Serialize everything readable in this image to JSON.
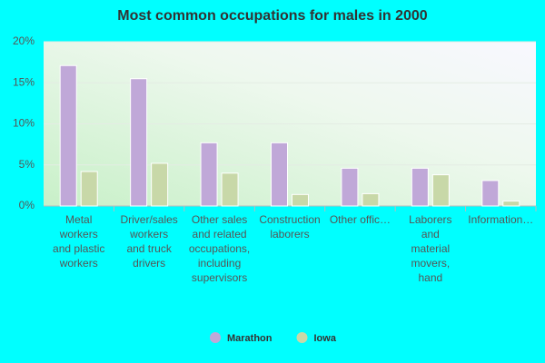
{
  "chart_data": {
    "type": "bar",
    "title": "Most common occupations for males in 2000",
    "categories": [
      "Metal\nworkers\nand plastic\nworkers",
      "Driver/sales\nworkers\nand truck\ndrivers",
      "Other sales\nand related\noccupations,\nincluding\nsupervisors",
      "Construction\nlaborers",
      "Other offic…",
      "Laborers\nand\nmaterial\nmovers,\nhand",
      "Information…"
    ],
    "series": [
      {
        "name": "Marathon",
        "color": "#c0a8d8",
        "values": [
          17.1,
          15.5,
          7.7,
          7.7,
          4.6,
          4.6,
          3.1
        ]
      },
      {
        "name": "Iowa",
        "color": "#c8d8a8",
        "values": [
          4.2,
          5.2,
          4.0,
          1.4,
          1.5,
          3.8,
          0.6
        ]
      }
    ],
    "ylim": [
      0,
      20
    ],
    "yticks": [
      {
        "value": 0,
        "label": "0%"
      },
      {
        "value": 5,
        "label": "5%"
      },
      {
        "value": 10,
        "label": "10%"
      },
      {
        "value": 15,
        "label": "15%"
      },
      {
        "value": 20,
        "label": "20%"
      }
    ],
    "grid": true,
    "legend": "bottom"
  }
}
